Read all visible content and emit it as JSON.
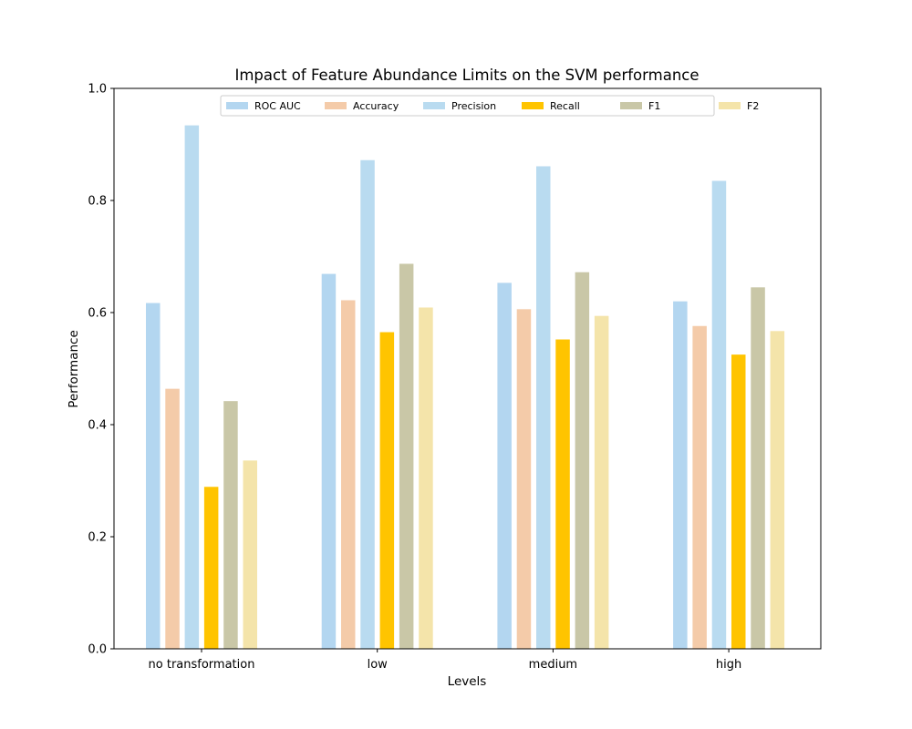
{
  "chart_data": {
    "type": "bar",
    "title": "Impact of Feature Abundance Limits on the SVM performance",
    "xlabel": "Levels",
    "ylabel": "Performance",
    "ylim": [
      0,
      1
    ],
    "yticks": [
      0.0,
      0.2,
      0.4,
      0.6,
      0.8,
      1.0
    ],
    "ytick_labels": [
      "0.0",
      "0.2",
      "0.4",
      "0.6",
      "0.8",
      "1.0"
    ],
    "categories": [
      "no transformation",
      "low",
      "medium",
      "high"
    ],
    "grid": false,
    "legend_position": "top-center",
    "series": [
      {
        "name": "ROC AUC",
        "color": "#b3d6f0",
        "values": [
          0.617,
          0.669,
          0.653,
          0.62
        ]
      },
      {
        "name": "Accuracy",
        "color": "#f4cba9",
        "values": [
          0.464,
          0.622,
          0.606,
          0.576
        ]
      },
      {
        "name": "Precision",
        "color": "#b9dbf0",
        "values": [
          0.934,
          0.872,
          0.861,
          0.835
        ]
      },
      {
        "name": "Recall",
        "color": "#ffc400",
        "values": [
          0.289,
          0.565,
          0.552,
          0.525
        ]
      },
      {
        "name": "F1",
        "color": "#c9c7a7",
        "values": [
          0.442,
          0.687,
          0.672,
          0.645
        ]
      },
      {
        "name": "F2",
        "color": "#f4e4aa",
        "values": [
          0.336,
          0.609,
          0.594,
          0.567
        ]
      }
    ]
  }
}
